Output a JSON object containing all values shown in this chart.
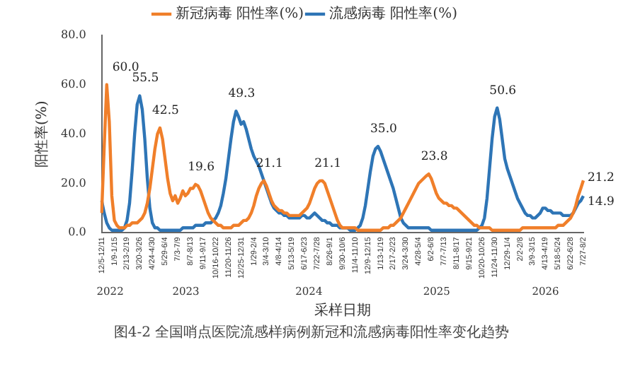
{
  "chart_data": {
    "type": "line",
    "xlabel": "采样日期",
    "ylabel": "阳性率(%)",
    "annotations": [
      "2022",
      "2023",
      "2024",
      "2025",
      "2026",
      "图4-2 全国哨点医院流感样病例新冠和流感病毒阳性率变化趋势"
    ],
    "categories": [
      "12/5-12/11",
      null,
      null,
      null,
      null,
      "1/9-1/15",
      null,
      null,
      null,
      null,
      "2/13-2/19",
      null,
      null,
      null,
      null,
      "3/20-3/26",
      null,
      null,
      null,
      null,
      "4/24-4/30",
      null,
      null,
      null,
      null,
      "5/29-6/4",
      null,
      null,
      null,
      null,
      "7/3-7/9",
      null,
      null,
      null,
      null,
      "8/7-8/13",
      null,
      null,
      null,
      null,
      "9/11-9/17",
      null,
      null,
      null,
      null,
      "10/16-10/22",
      null,
      null,
      null,
      null,
      "11/20-11/26",
      null,
      null,
      null,
      null,
      "12/25-12/31",
      null,
      null,
      null,
      null,
      "1/29-2/4",
      null,
      null,
      null,
      null,
      "3/4-3/10",
      null,
      null,
      null,
      null,
      "4/8-4/14",
      null,
      null,
      null,
      null,
      "5/13-5/19",
      null,
      null,
      null,
      null,
      "6/17-6/23",
      null,
      null,
      null,
      null,
      "7/22-7/28",
      null,
      null,
      null,
      null,
      "8/26-9/1",
      null,
      null,
      null,
      null,
      "9/30-10/6",
      null,
      null,
      null,
      null,
      "11/4-11/10",
      null,
      null,
      null,
      null,
      "12/9-12/15",
      null,
      null,
      null,
      null,
      "1/13-1/19",
      null,
      null,
      null,
      null,
      "2/17-2/23",
      null,
      null,
      null,
      null,
      "3/24-3/30",
      null,
      null,
      null,
      null,
      "4/28-5/4",
      null,
      null,
      null,
      null,
      "6/2-6/8",
      null,
      null,
      null,
      null,
      "7/7-7/13",
      null,
      null,
      null,
      null,
      "8/11-8/17",
      null,
      null,
      null,
      null,
      "9/15-9/21",
      null,
      null,
      null,
      null,
      "10/20-10/26",
      null,
      null,
      null,
      null,
      "11/24-11/30",
      null,
      null,
      null,
      null,
      "12/29-1/4",
      null,
      null,
      null,
      null,
      "2/2-2/8",
      null,
      null,
      null,
      null,
      "3/9-3/15",
      null,
      null,
      null,
      null,
      "4/13-4/19",
      null,
      null,
      null,
      null,
      "5/18-5/24",
      null,
      null,
      null,
      null,
      "6/22-6/28",
      null,
      null,
      null,
      null,
      "7/27-8/2"
    ],
    "series": [
      {
        "name": "新冠病毒 阳性率(%)",
        "color": "#f07f2a",
        "values": [
          8,
          35,
          60.0,
          45,
          15,
          5,
          3,
          2,
          2,
          2,
          3,
          3,
          4,
          4,
          4,
          5,
          6,
          8,
          12,
          18,
          26,
          34,
          40,
          42.5,
          38,
          30,
          22,
          16,
          13,
          15,
          12,
          14,
          17,
          15,
          16,
          18,
          18,
          19.6,
          19,
          17,
          14,
          11,
          8,
          6,
          5,
          4,
          3,
          3,
          2,
          2,
          2,
          2,
          3,
          3,
          3,
          4,
          5,
          5,
          6,
          8,
          11,
          15,
          18,
          20,
          21.1,
          19,
          16,
          13,
          11,
          10,
          9,
          9,
          8,
          8,
          7,
          7,
          7,
          7,
          7,
          8,
          9,
          10,
          12,
          15,
          18,
          20,
          21,
          21.1,
          20,
          17,
          14,
          11,
          8,
          5,
          3,
          2,
          2,
          2,
          2,
          2,
          2,
          1,
          1,
          1,
          1,
          1,
          1,
          1,
          1,
          1,
          1,
          2,
          2,
          2,
          3,
          3,
          4,
          5,
          6,
          8,
          10,
          12,
          14,
          16,
          18,
          20,
          21,
          22,
          23,
          23.8,
          22,
          19,
          16,
          14,
          13,
          12,
          12,
          11,
          11,
          10,
          10,
          9,
          8,
          7,
          6,
          5,
          4,
          3,
          3,
          2,
          2,
          2,
          2,
          2,
          1,
          1,
          1,
          1,
          1,
          1,
          1,
          1,
          1,
          1,
          1,
          1,
          2,
          2,
          2,
          2,
          2,
          2,
          2,
          2,
          2,
          2,
          2,
          2,
          2,
          2,
          3,
          3,
          3,
          4,
          5,
          6,
          8,
          11,
          15,
          18,
          21.2
        ],
        "value_labels": [
          null,
          null,
          "60.0",
          null,
          null,
          null,
          null,
          null,
          null,
          null,
          null,
          null,
          null,
          null,
          null,
          null,
          null,
          null,
          null,
          null,
          null,
          null,
          null,
          "42.5",
          null,
          null,
          null,
          null,
          null,
          null,
          null,
          null,
          null,
          null,
          null,
          null,
          null,
          "19.6",
          null,
          null,
          null,
          null,
          null,
          null,
          null,
          null,
          null,
          null,
          null,
          null,
          null,
          null,
          null,
          null,
          null,
          null,
          null,
          null,
          null,
          null,
          null,
          null,
          null,
          null,
          "21.1",
          null,
          null,
          null,
          null,
          null,
          null,
          null,
          null,
          null,
          null,
          null,
          null,
          null,
          null,
          null,
          null,
          null,
          null,
          null,
          null,
          null,
          null,
          "21.1",
          null,
          null,
          null,
          null,
          null,
          null,
          null,
          null,
          null,
          null,
          null,
          null,
          null,
          null,
          null,
          null,
          null,
          null,
          null,
          null,
          null,
          null,
          null,
          null,
          null,
          null,
          null,
          null,
          null,
          null,
          null,
          null,
          null,
          null,
          null,
          null,
          null,
          null,
          null,
          null,
          null,
          "23.8",
          null,
          null,
          null,
          null,
          null,
          null,
          null,
          null,
          null,
          null,
          null,
          null,
          null,
          null,
          null,
          null,
          null,
          null,
          null,
          null,
          null,
          null,
          null,
          null,
          null,
          null,
          null,
          null,
          null,
          null,
          null,
          null,
          null,
          null,
          null,
          null,
          null,
          null,
          null,
          null,
          null,
          null,
          null,
          null,
          null,
          null,
          null,
          null,
          null,
          null,
          null,
          null,
          null,
          null,
          null,
          null,
          null,
          null,
          null,
          null,
          "21.2"
        ]
      },
      {
        "name": "流感病毒 阳性率(%)",
        "color": "#2e75b6",
        "values": [
          13,
          8,
          4,
          2,
          1,
          1,
          1,
          1,
          1,
          2,
          5,
          12,
          25,
          40,
          52,
          55.5,
          50,
          38,
          22,
          10,
          4,
          2,
          2,
          1,
          1,
          1,
          1,
          1,
          1,
          1,
          1,
          1,
          2,
          2,
          2,
          2,
          2,
          3,
          3,
          3,
          3,
          4,
          4,
          4,
          5,
          6,
          8,
          11,
          16,
          22,
          30,
          38,
          45,
          49.3,
          47,
          44,
          45,
          42,
          38,
          34,
          31,
          29,
          27,
          24,
          21,
          18,
          15,
          12,
          10,
          9,
          8,
          8,
          7,
          7,
          6,
          6,
          6,
          6,
          6,
          7,
          7,
          6,
          6,
          7,
          8,
          7,
          6,
          5,
          5,
          4,
          4,
          3,
          3,
          3,
          2,
          2,
          2,
          2,
          1,
          1,
          1,
          2,
          3,
          6,
          11,
          18,
          25,
          31,
          34,
          35.0,
          33,
          30,
          27,
          24,
          21,
          18,
          14,
          10,
          6,
          4,
          3,
          2,
          2,
          2,
          2,
          2,
          2,
          2,
          2,
          2,
          1,
          1,
          1,
          1,
          1,
          1,
          1,
          1,
          1,
          1,
          1,
          1,
          1,
          1,
          1,
          1,
          1,
          1,
          1,
          2,
          3,
          6,
          14,
          26,
          38,
          47,
          50.6,
          46,
          38,
          30,
          26,
          23,
          20,
          17,
          14,
          12,
          10,
          8,
          7,
          7,
          6,
          6,
          7,
          8,
          10,
          10,
          9,
          9,
          8,
          8,
          8,
          8,
          7,
          7,
          7,
          7,
          8,
          10,
          12,
          13,
          14.9
        ],
        "value_labels": [
          null,
          null,
          null,
          null,
          null,
          null,
          null,
          null,
          null,
          null,
          null,
          null,
          null,
          null,
          null,
          "55.5",
          null,
          null,
          null,
          null,
          null,
          null,
          null,
          null,
          null,
          null,
          null,
          null,
          null,
          null,
          null,
          null,
          null,
          null,
          null,
          null,
          null,
          null,
          null,
          null,
          null,
          null,
          null,
          null,
          null,
          null,
          null,
          null,
          null,
          null,
          null,
          null,
          null,
          "49.3",
          null,
          null,
          null,
          null,
          null,
          null,
          null,
          null,
          null,
          null,
          null,
          null,
          null,
          null,
          null,
          null,
          null,
          null,
          null,
          null,
          null,
          null,
          null,
          null,
          null,
          null,
          null,
          null,
          null,
          null,
          null,
          null,
          null,
          null,
          null,
          null,
          null,
          null,
          null,
          null,
          null,
          null,
          null,
          null,
          null,
          null,
          null,
          null,
          null,
          null,
          null,
          null,
          null,
          null,
          null,
          "35.0",
          null,
          null,
          null,
          null,
          null,
          null,
          null,
          null,
          null,
          null,
          null,
          null,
          null,
          null,
          null,
          null,
          null,
          null,
          null,
          null,
          null,
          null,
          null,
          null,
          null,
          null,
          null,
          null,
          null,
          null,
          null,
          null,
          null,
          null,
          null,
          null,
          null,
          null,
          null,
          null,
          null,
          null,
          null,
          null,
          null,
          null,
          "50.6",
          null,
          null,
          null,
          null,
          null,
          null,
          null,
          null,
          null,
          null,
          null,
          null,
          null,
          null,
          null,
          null,
          null,
          null,
          null,
          null,
          null,
          null,
          null,
          null,
          null,
          null,
          null,
          null,
          null,
          null,
          null,
          null,
          null,
          "14.9"
        ]
      }
    ],
    "ylim": [
      0,
      80
    ],
    "yticks": [
      {
        "value": 0,
        "label": "0.0"
      },
      {
        "value": 20,
        "label": "20.0"
      },
      {
        "value": 40,
        "label": "40.0"
      },
      {
        "value": 60,
        "label": "60.0"
      },
      {
        "value": 80,
        "label": "80.0"
      }
    ],
    "grid": false,
    "legend": "top",
    "marker": "none",
    "line_style": "solid"
  }
}
